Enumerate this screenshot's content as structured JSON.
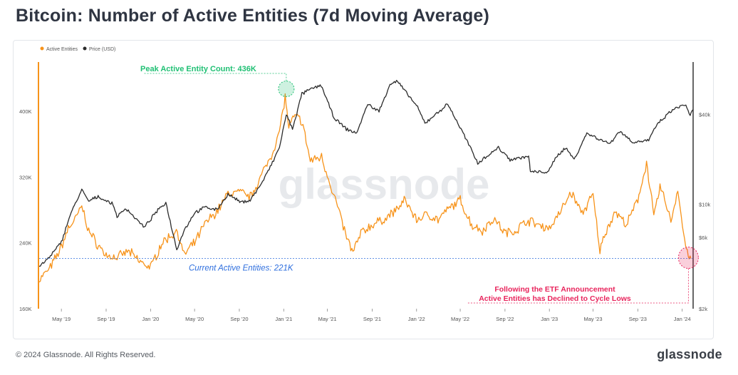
{
  "title": "Bitcoin: Number of Active Entities (7d Moving Average)",
  "footer": {
    "copyright": "© 2024 Glassnode. All Rights Reserved.",
    "brand": "glassnode"
  },
  "watermark": "glassnode",
  "colors": {
    "entities": "#f7931a",
    "price": "#2b2b2b",
    "peak": "#20c074",
    "current": "#2f6fde",
    "etf": "#e8245c"
  },
  "chart_data": {
    "type": "line",
    "legend": {
      "position": "top-left",
      "items": [
        "Active Entities",
        "Price (USD)"
      ]
    },
    "x_range": [
      "2019-03-01",
      "2024-01-31"
    ],
    "x_ticks": [
      "May '19",
      "Sep '19",
      "Jan '20",
      "May '20",
      "Sep '20",
      "Jan '21",
      "May '21",
      "Sep '21",
      "Jan '22",
      "May '22",
      "Sep '22",
      "Jan '23",
      "May '23",
      "Sep '23",
      "Jan '24"
    ],
    "y_left": {
      "ticks": [
        "160K",
        "240K",
        "320K",
        "400K"
      ],
      "range": [
        160000,
        460000
      ]
    },
    "y_right": {
      "scale": "log",
      "ticks": [
        "$2k",
        "$6k",
        "$10k",
        "$40k"
      ],
      "tick_values": [
        2000,
        6000,
        10000,
        40000
      ],
      "range": [
        2000,
        90000
      ]
    },
    "grid": false,
    "series": [
      {
        "name": "Active Entities",
        "axis": "left",
        "points": [
          [
            "2019-03-01",
            195000
          ],
          [
            "2019-04-01",
            210000
          ],
          [
            "2019-05-01",
            235000
          ],
          [
            "2019-05-20",
            258000
          ],
          [
            "2019-06-10",
            270000
          ],
          [
            "2019-06-26",
            285000
          ],
          [
            "2019-07-15",
            255000
          ],
          [
            "2019-08-05",
            240000
          ],
          [
            "2019-09-01",
            225000
          ],
          [
            "2019-10-01",
            222000
          ],
          [
            "2019-11-01",
            230000
          ],
          [
            "2019-12-01",
            218000
          ],
          [
            "2020-01-01",
            210000
          ],
          [
            "2020-02-01",
            240000
          ],
          [
            "2020-03-15",
            255000
          ],
          [
            "2020-04-01",
            225000
          ],
          [
            "2020-05-01",
            240000
          ],
          [
            "2020-06-01",
            265000
          ],
          [
            "2020-07-01",
            278000
          ],
          [
            "2020-08-01",
            300000
          ],
          [
            "2020-09-01",
            302000
          ],
          [
            "2020-10-01",
            296000
          ],
          [
            "2020-11-01",
            322000
          ],
          [
            "2020-12-01",
            350000
          ],
          [
            "2020-12-20",
            375000
          ],
          [
            "2021-01-05",
            418000
          ],
          [
            "2021-01-15",
            380000
          ],
          [
            "2021-02-01",
            395000
          ],
          [
            "2021-02-20",
            388000
          ],
          [
            "2021-03-15",
            340000
          ],
          [
            "2021-04-15",
            345000
          ],
          [
            "2021-05-10",
            310000
          ],
          [
            "2021-06-01",
            280000
          ],
          [
            "2021-06-20",
            250000
          ],
          [
            "2021-07-10",
            228000
          ],
          [
            "2021-08-01",
            252000
          ],
          [
            "2021-09-01",
            262000
          ],
          [
            "2021-10-01",
            268000
          ],
          [
            "2021-11-01",
            278000
          ],
          [
            "2021-12-01",
            292000
          ],
          [
            "2022-01-01",
            268000
          ],
          [
            "2022-02-01",
            275000
          ],
          [
            "2022-03-01",
            268000
          ],
          [
            "2022-04-01",
            282000
          ],
          [
            "2022-05-01",
            292000
          ],
          [
            "2022-06-01",
            262000
          ],
          [
            "2022-07-01",
            255000
          ],
          [
            "2022-08-01",
            270000
          ],
          [
            "2022-09-01",
            252000
          ],
          [
            "2022-10-01",
            255000
          ],
          [
            "2022-11-01",
            268000
          ],
          [
            "2022-12-01",
            262000
          ],
          [
            "2023-01-01",
            258000
          ],
          [
            "2023-02-01",
            278000
          ],
          [
            "2023-03-01",
            302000
          ],
          [
            "2023-04-01",
            276000
          ],
          [
            "2023-05-01",
            298000
          ],
          [
            "2023-05-20",
            230000
          ],
          [
            "2023-06-01",
            250000
          ],
          [
            "2023-07-01",
            278000
          ],
          [
            "2023-08-01",
            262000
          ],
          [
            "2023-09-01",
            292000
          ],
          [
            "2023-09-25",
            338000
          ],
          [
            "2023-10-15",
            272000
          ],
          [
            "2023-11-01",
            308000
          ],
          [
            "2023-11-20",
            285000
          ],
          [
            "2023-12-01",
            266000
          ],
          [
            "2023-12-20",
            305000
          ],
          [
            "2024-01-05",
            250000
          ],
          [
            "2024-01-15",
            228000
          ],
          [
            "2024-01-25",
            221000
          ]
        ]
      },
      {
        "name": "Price (USD)",
        "axis": "right",
        "points": [
          [
            "2019-03-01",
            3800
          ],
          [
            "2019-04-01",
            4500
          ],
          [
            "2019-05-01",
            5600
          ],
          [
            "2019-05-25",
            8500
          ],
          [
            "2019-06-26",
            12500
          ],
          [
            "2019-07-15",
            10500
          ],
          [
            "2019-08-10",
            11300
          ],
          [
            "2019-09-20",
            10000
          ],
          [
            "2019-10-01",
            8300
          ],
          [
            "2019-10-26",
            9400
          ],
          [
            "2019-12-15",
            7000
          ],
          [
            "2020-01-15",
            8800
          ],
          [
            "2020-02-12",
            10300
          ],
          [
            "2020-03-13",
            5000
          ],
          [
            "2020-04-01",
            6600
          ],
          [
            "2020-05-01",
            8800
          ],
          [
            "2020-06-01",
            9600
          ],
          [
            "2020-07-01",
            9200
          ],
          [
            "2020-08-01",
            11700
          ],
          [
            "2020-09-05",
            10300
          ],
          [
            "2020-10-01",
            10700
          ],
          [
            "2020-11-01",
            13800
          ],
          [
            "2020-12-01",
            19000
          ],
          [
            "2020-12-20",
            24000
          ],
          [
            "2021-01-08",
            40000
          ],
          [
            "2021-01-25",
            32000
          ],
          [
            "2021-02-20",
            55000
          ],
          [
            "2021-03-15",
            59000
          ],
          [
            "2021-04-14",
            63000
          ],
          [
            "2021-05-19",
            38000
          ],
          [
            "2021-06-22",
            32000
          ],
          [
            "2021-07-20",
            30000
          ],
          [
            "2021-08-20",
            47000
          ],
          [
            "2021-09-20",
            42000
          ],
          [
            "2021-10-20",
            64000
          ],
          [
            "2021-11-10",
            67000
          ],
          [
            "2021-12-01",
            57000
          ],
          [
            "2022-01-01",
            46000
          ],
          [
            "2022-01-24",
            35000
          ],
          [
            "2022-03-28",
            47000
          ],
          [
            "2022-05-12",
            29000
          ],
          [
            "2022-06-18",
            19000
          ],
          [
            "2022-08-14",
            24000
          ],
          [
            "2022-09-15",
            20000
          ],
          [
            "2022-11-05",
            21000
          ],
          [
            "2022-11-10",
            16500
          ],
          [
            "2022-12-30",
            16500
          ],
          [
            "2023-01-20",
            21000
          ],
          [
            "2023-02-15",
            24000
          ],
          [
            "2023-03-10",
            20000
          ],
          [
            "2023-04-14",
            30000
          ],
          [
            "2023-06-15",
            25500
          ],
          [
            "2023-07-13",
            31000
          ],
          [
            "2023-08-20",
            26000
          ],
          [
            "2023-10-01",
            27000
          ],
          [
            "2023-10-25",
            34500
          ],
          [
            "2023-12-08",
            43500
          ],
          [
            "2024-01-11",
            46500
          ],
          [
            "2024-01-23",
            39500
          ],
          [
            "2024-01-31",
            43000
          ]
        ]
      }
    ],
    "annotations": [
      {
        "label": "Peak Active Entity Count: 436K",
        "date": "2021-01-08",
        "value": 436000
      },
      {
        "label": "Current Active Entities: 221K",
        "value": 221000
      },
      {
        "label": "Following the ETF Announcement",
        "label2": "Active Entities has Declined to Cycle Lows",
        "date": "2024-01-20"
      }
    ]
  }
}
